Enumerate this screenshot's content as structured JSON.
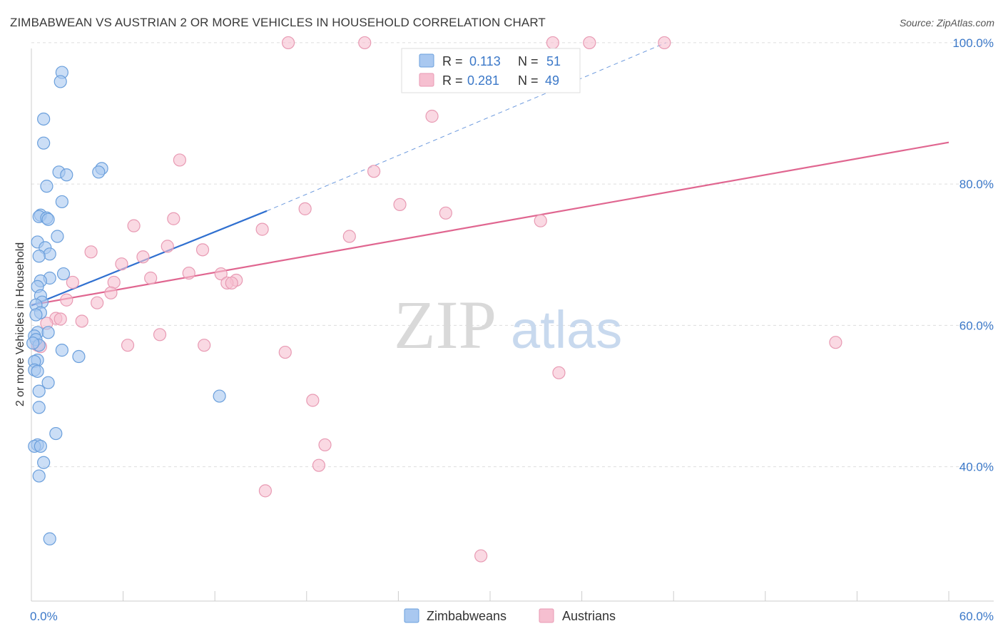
{
  "title": "ZIMBABWEAN VS AUSTRIAN 2 OR MORE VEHICLES IN HOUSEHOLD CORRELATION CHART",
  "source": "Source: ZipAtlas.com",
  "watermark": {
    "zip": "ZIP",
    "atlas": "atlas"
  },
  "colors": {
    "blue_fill": "#a9c8f0",
    "blue_stroke": "#6a9fdc",
    "blue_line": "#3070d0",
    "pink_fill": "#f6bfd0",
    "pink_stroke": "#e89ab3",
    "pink_line": "#e06690",
    "tick_text": "#3b78c8",
    "grid": "#dddddd"
  },
  "legend": {
    "rows": [
      {
        "r_label": "R =",
        "r_value": "0.113",
        "n_label": "N =",
        "n_value": "51"
      },
      {
        "r_label": "R =",
        "r_value": "0.281",
        "n_label": "N =",
        "n_value": "49"
      }
    ]
  },
  "bottom_legend": [
    "Zimbabweans",
    "Austrians"
  ],
  "chart_data": {
    "type": "scatter",
    "title": "ZIMBABWEAN VS AUSTRIAN 2 OR MORE VEHICLES IN HOUSEHOLD CORRELATION CHART",
    "xlabel": "",
    "ylabel": "2 or more Vehicles in Household",
    "xlim": [
      0,
      60
    ],
    "ylim": [
      21,
      101
    ],
    "x_tick_labels": [
      "0.0%",
      "60.0%"
    ],
    "y_ticks": [
      40,
      60,
      80,
      100
    ],
    "y_tick_labels": [
      "40.0%",
      "60.0%",
      "80.0%",
      "100.0%"
    ],
    "grid": true,
    "series": [
      {
        "name": "Zimbabweans",
        "r": 0.113,
        "n": 51,
        "points": [
          [
            2.0,
            95.8
          ],
          [
            1.9,
            94.5
          ],
          [
            0.8,
            89.2
          ],
          [
            0.8,
            85.8
          ],
          [
            1.8,
            81.7
          ],
          [
            2.3,
            81.3
          ],
          [
            4.6,
            82.2
          ],
          [
            4.4,
            81.7
          ],
          [
            1.0,
            79.7
          ],
          [
            2.0,
            77.5
          ],
          [
            0.6,
            75.6
          ],
          [
            0.5,
            75.4
          ],
          [
            1.0,
            75.2
          ],
          [
            1.1,
            75.0
          ],
          [
            1.7,
            72.6
          ],
          [
            0.4,
            71.8
          ],
          [
            0.9,
            71.0
          ],
          [
            1.2,
            70.1
          ],
          [
            0.5,
            69.8
          ],
          [
            2.1,
            67.3
          ],
          [
            1.2,
            66.7
          ],
          [
            0.6,
            66.3
          ],
          [
            0.4,
            65.5
          ],
          [
            0.6,
            64.2
          ],
          [
            0.7,
            63.3
          ],
          [
            0.3,
            62.9
          ],
          [
            0.6,
            61.8
          ],
          [
            0.3,
            61.5
          ],
          [
            0.4,
            59.0
          ],
          [
            1.1,
            59.0
          ],
          [
            0.2,
            58.5
          ],
          [
            0.3,
            58.0
          ],
          [
            0.5,
            57.2
          ],
          [
            2.0,
            56.5
          ],
          [
            3.1,
            55.6
          ],
          [
            0.4,
            55.1
          ],
          [
            0.2,
            54.9
          ],
          [
            0.2,
            53.7
          ],
          [
            0.4,
            53.5
          ],
          [
            1.1,
            51.9
          ],
          [
            0.5,
            50.7
          ],
          [
            12.3,
            50.0
          ],
          [
            0.5,
            48.4
          ],
          [
            1.6,
            44.7
          ],
          [
            0.4,
            43.1
          ],
          [
            0.2,
            42.9
          ],
          [
            0.6,
            42.9
          ],
          [
            0.8,
            40.6
          ],
          [
            0.5,
            38.7
          ],
          [
            1.2,
            29.8
          ],
          [
            0.1,
            57.5
          ]
        ],
        "trend": {
          "x": [
            0,
            15.4
          ],
          "y": [
            62.8,
            76.2
          ]
        },
        "trend_extension": {
          "x": [
            15.4,
            41.5
          ],
          "y": [
            76.2,
            100.0
          ]
        }
      },
      {
        "name": "Austrians",
        "r": 0.281,
        "n": 49,
        "points": [
          [
            16.8,
            100.0
          ],
          [
            21.8,
            100.0
          ],
          [
            34.1,
            100.0
          ],
          [
            36.5,
            100.0
          ],
          [
            41.4,
            100.0
          ],
          [
            26.2,
            89.6
          ],
          [
            9.7,
            83.4
          ],
          [
            22.4,
            81.8
          ],
          [
            24.1,
            77.1
          ],
          [
            17.9,
            76.5
          ],
          [
            27.1,
            75.9
          ],
          [
            9.3,
            75.1
          ],
          [
            33.3,
            74.8
          ],
          [
            6.7,
            74.1
          ],
          [
            15.1,
            73.6
          ],
          [
            20.8,
            72.6
          ],
          [
            8.9,
            71.2
          ],
          [
            11.2,
            70.7
          ],
          [
            3.9,
            70.4
          ],
          [
            7.3,
            69.7
          ],
          [
            5.9,
            68.7
          ],
          [
            10.3,
            67.4
          ],
          [
            12.4,
            67.3
          ],
          [
            7.8,
            66.7
          ],
          [
            13.4,
            66.4
          ],
          [
            5.4,
            66.1
          ],
          [
            2.7,
            66.1
          ],
          [
            12.8,
            66.0
          ],
          [
            13.1,
            66.0
          ],
          [
            5.2,
            64.6
          ],
          [
            2.3,
            63.6
          ],
          [
            4.3,
            63.2
          ],
          [
            1.6,
            61.0
          ],
          [
            1.9,
            60.9
          ],
          [
            3.3,
            60.6
          ],
          [
            1.0,
            60.3
          ],
          [
            8.4,
            58.7
          ],
          [
            6.3,
            57.2
          ],
          [
            11.3,
            57.2
          ],
          [
            16.6,
            56.2
          ],
          [
            52.6,
            57.6
          ],
          [
            34.5,
            53.3
          ],
          [
            18.4,
            49.4
          ],
          [
            19.2,
            43.1
          ],
          [
            18.8,
            40.2
          ],
          [
            15.3,
            36.6
          ],
          [
            29.4,
            27.4
          ],
          [
            0.4,
            57.2
          ],
          [
            0.6,
            57.0
          ]
        ],
        "trend": {
          "x": [
            0,
            60
          ],
          "y": [
            62.9,
            85.9
          ]
        }
      }
    ]
  }
}
